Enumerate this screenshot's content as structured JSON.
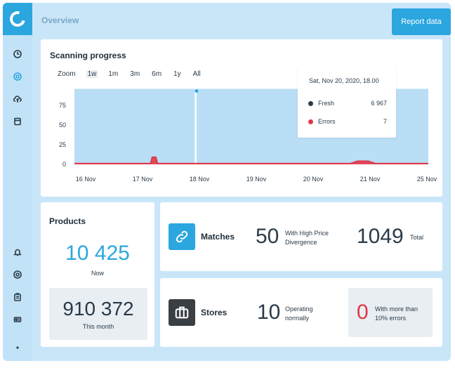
{
  "header": {
    "title": "Overview",
    "report_button": "Report data"
  },
  "sidebar": {
    "top_icons": [
      "clock-icon",
      "target-icon",
      "cloud-upload-icon",
      "database-icon"
    ],
    "bottom_icons": [
      "bell-icon",
      "at-sign-icon",
      "building-icon",
      "user-badge-icon"
    ],
    "active_index": 1
  },
  "scanning": {
    "title": "Scanning progress",
    "zoom_options": [
      "Zoom",
      "1w",
      "1m",
      "3m",
      "6m",
      "1y",
      "All"
    ],
    "selected_zoom": "1w",
    "tooltip": {
      "date": "Sat, Nov 20, 2020, 18.00",
      "rows": [
        {
          "label": "Fresh",
          "value": "6 967",
          "color": "#2a3a48"
        },
        {
          "label": "Errors",
          "value": "7",
          "color": "#e0384a"
        }
      ]
    }
  },
  "chart_data": {
    "type": "area",
    "x_tick_labels": [
      "16 Nov",
      "17 Nov",
      "18 Nov",
      "19 Nov",
      "20 Nov",
      "21 Nov",
      "25 Nov"
    ],
    "y_tick_labels": [
      "0",
      "25",
      "50",
      "75"
    ],
    "ylim": [
      0,
      100
    ],
    "series": [
      {
        "name": "Fresh",
        "color": "#b9def5",
        "x": [
          0,
          0.34,
          0.345,
          1
        ],
        "values": [
          96,
          96,
          96,
          96
        ]
      },
      {
        "name": "Errors",
        "color": "#e0384a",
        "x": [
          0,
          0.215,
          0.22,
          0.23,
          0.235,
          0.78,
          0.8,
          0.83,
          0.85,
          1
        ],
        "values": [
          1,
          1,
          9,
          9,
          1,
          1,
          4,
          4,
          1,
          1
        ]
      }
    ],
    "marker": {
      "x": 0.345,
      "value": 96
    },
    "grid": false,
    "legend": "tooltip"
  },
  "products": {
    "title": "Products",
    "now_value": "10 425",
    "now_label": "Now",
    "month_value": "910 372",
    "month_label": "This month"
  },
  "matches": {
    "label": "Matches",
    "divergence_value": "50",
    "divergence_text_1": "With High Price",
    "divergence_text_2": "Divergence",
    "total_value": "1049",
    "total_label": "Total",
    "icon_color": "#2ba6df"
  },
  "stores": {
    "label": "Stores",
    "operating_value": "10",
    "operating_text_1": "Operating",
    "operating_text_2": "normally",
    "errors_value": "0",
    "errors_text_1": "With more than",
    "errors_text_2": "10% errors",
    "icon_color": "#3a3f44",
    "error_color": "#e0384a"
  }
}
